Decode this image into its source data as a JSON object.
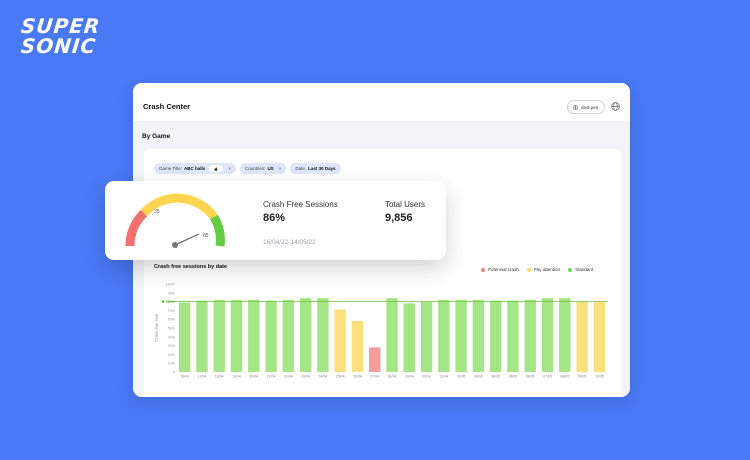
{
  "logo": {
    "line1": "SUPER",
    "line2": "SONIC"
  },
  "header": {
    "title": "Crash Center",
    "user": "dedi.peri"
  },
  "section": {
    "title": "By Game"
  },
  "filters": [
    {
      "label": "Game Title:",
      "value": "ABC balls",
      "extra": "",
      "close": "×"
    },
    {
      "label": "Countries:",
      "value": "US",
      "extra": "",
      "close": "×"
    },
    {
      "label": "Date:",
      "value": "Last 30 Days",
      "extra": "",
      "close": ""
    }
  ],
  "card": {
    "gauge": {
      "value": 86,
      "label_low": "35",
      "label_high": "85",
      "min": 0,
      "max": 100
    },
    "crash_free_label": "Crash Free Sessions",
    "crash_free_value": "86%",
    "total_users_label": "Total Users",
    "total_users_value": "9,856",
    "date_range": "16/04/22-14/05/22"
  },
  "legend": [
    {
      "label": "Potensial crash",
      "color": "#f07f7f"
    },
    {
      "label": "Pay attention",
      "color": "#ffd86b"
    },
    {
      "label": "Standard",
      "color": "#6fd45a"
    }
  ],
  "colors": {
    "red": "#f79a9a",
    "yellow": "#fbe07e",
    "green": "#a4e685",
    "refline": "#6fbf3c",
    "background": "#4a79f6"
  },
  "chart_data": {
    "type": "bar",
    "title": "Crash free sessions by date",
    "ylabel": "Crash free rate",
    "threshold": {
      "label": "80%",
      "value": 80
    },
    "ylim": [
      0,
      100
    ],
    "yticks": [
      "100%",
      "90%",
      "80%",
      "70%",
      "60%",
      "50%",
      "40%",
      "30%",
      "20%",
      "10%",
      "0"
    ],
    "categories": [
      "16/04",
      "17/04",
      "18/04",
      "19/04",
      "20/04",
      "21/04",
      "22/04",
      "23/04",
      "24/04",
      "25/04",
      "26/04",
      "27/04",
      "28/04",
      "29/04",
      "30/04",
      "31/04",
      "01/05",
      "08/05",
      "08/05",
      "08/05",
      "08/05",
      "07/05",
      "08/05",
      "09/05",
      "10/05"
    ],
    "values": [
      79,
      81,
      82,
      82,
      82,
      81,
      82,
      84,
      84,
      71,
      58,
      28,
      84,
      78,
      80,
      82,
      82,
      82,
      81,
      81,
      82,
      84,
      84,
      80,
      80
    ],
    "status": [
      "green",
      "green",
      "green",
      "green",
      "green",
      "green",
      "green",
      "green",
      "green",
      "yellow",
      "yellow",
      "red",
      "green",
      "green",
      "green",
      "green",
      "green",
      "green",
      "green",
      "green",
      "green",
      "green",
      "green",
      "yellow",
      "yellow"
    ]
  }
}
